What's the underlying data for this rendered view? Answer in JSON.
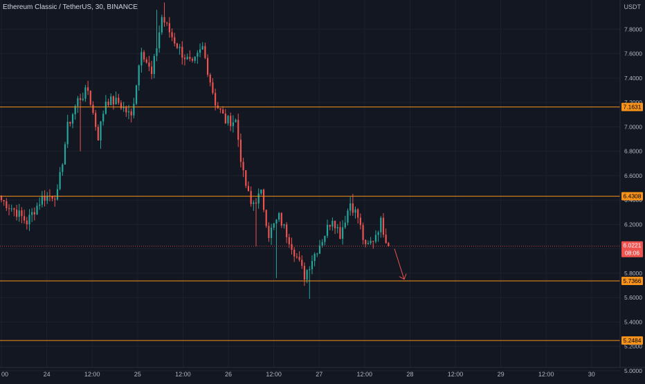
{
  "header": {
    "title": "Ethereum Classic / TetherUS, 30, BINANCE",
    "currency": "USDT"
  },
  "colors": {
    "background": "#131722",
    "grid": "#1e222d",
    "axis_text": "#b2b5be",
    "up": "#26a69a",
    "down": "#ef5350",
    "level_line": "#f7931a",
    "level_label_bg": "#f7931a",
    "price_label_bg": "#ef5350",
    "arrow": "#ef5350"
  },
  "chart_data": {
    "type": "candlestick",
    "title": "Ethereum Classic / TetherUS, 30, BINANCE",
    "ylim": [
      4.92,
      8.04
    ],
    "y_ticks": [
      "7.8000",
      "7.6000",
      "7.4000",
      "7.2000",
      "7.0000",
      "6.8000",
      "6.6000",
      "6.4000",
      "6.2000",
      "6.0000",
      "5.8000",
      "5.6000",
      "5.4000",
      "5.2000",
      "5.0000"
    ],
    "x_ticks": [
      "00",
      "24",
      "12:00",
      "25",
      "12:00",
      "26",
      "12:00",
      "27",
      "12:00",
      "28",
      "12:00",
      "29",
      "12:00",
      "30"
    ],
    "horizontal_levels": [
      {
        "value": 7.1631,
        "label": "7.1631"
      },
      {
        "value": 6.4308,
        "label": "6.4308"
      },
      {
        "value": 5.7366,
        "label": "5.7366"
      },
      {
        "value": 5.2484,
        "label": "5.2484"
      }
    ],
    "current_price": {
      "value": 6.0221,
      "label": "6.0221",
      "countdown": "08:06"
    },
    "projection_arrow": {
      "from": 6.0,
      "to": 5.75,
      "direction": "down"
    },
    "anchors": [
      {
        "i": 0,
        "p": 6.4
      },
      {
        "i": 5,
        "p": 6.32
      },
      {
        "i": 10,
        "p": 6.22
      },
      {
        "i": 16,
        "p": 6.42
      },
      {
        "i": 22,
        "p": 6.45
      },
      {
        "i": 26,
        "p": 7.0
      },
      {
        "i": 30,
        "p": 7.22
      },
      {
        "i": 34,
        "p": 7.3
      },
      {
        "i": 38,
        "p": 6.92
      },
      {
        "i": 41,
        "p": 7.22
      },
      {
        "i": 46,
        "p": 7.2
      },
      {
        "i": 51,
        "p": 7.08
      },
      {
        "i": 55,
        "p": 7.65
      },
      {
        "i": 59,
        "p": 7.42
      },
      {
        "i": 63,
        "p": 7.9
      },
      {
        "i": 67,
        "p": 7.74
      },
      {
        "i": 71,
        "p": 7.6
      },
      {
        "i": 75,
        "p": 7.5
      },
      {
        "i": 79,
        "p": 7.65
      },
      {
        "i": 84,
        "p": 7.2
      },
      {
        "i": 88,
        "p": 7.05
      },
      {
        "i": 92,
        "p": 7.05
      },
      {
        "i": 95,
        "p": 6.6
      },
      {
        "i": 98,
        "p": 6.36
      },
      {
        "i": 102,
        "p": 6.45
      },
      {
        "i": 105,
        "p": 6.12
      },
      {
        "i": 109,
        "p": 6.26
      },
      {
        "i": 113,
        "p": 6.08
      },
      {
        "i": 116,
        "p": 5.93
      },
      {
        "i": 119,
        "p": 5.78
      },
      {
        "i": 122,
        "p": 5.92
      },
      {
        "i": 126,
        "p": 6.08
      },
      {
        "i": 130,
        "p": 6.26
      },
      {
        "i": 133,
        "p": 6.12
      },
      {
        "i": 137,
        "p": 6.38
      },
      {
        "i": 140,
        "p": 6.26
      },
      {
        "i": 143,
        "p": 6.0
      },
      {
        "i": 146,
        "p": 6.08
      },
      {
        "i": 149,
        "p": 6.22
      },
      {
        "i": 152,
        "p": 6.02
      }
    ],
    "wick_spikes": [
      {
        "i": 31,
        "low": 6.8
      },
      {
        "i": 39,
        "low": 6.82
      },
      {
        "i": 108,
        "low": 5.76
      },
      {
        "i": 121,
        "low": 5.59
      },
      {
        "i": 100,
        "low": 6.02
      },
      {
        "i": 138,
        "high": 6.45
      },
      {
        "i": 64,
        "high": 8.02
      },
      {
        "i": 61,
        "high": 7.96
      }
    ]
  }
}
